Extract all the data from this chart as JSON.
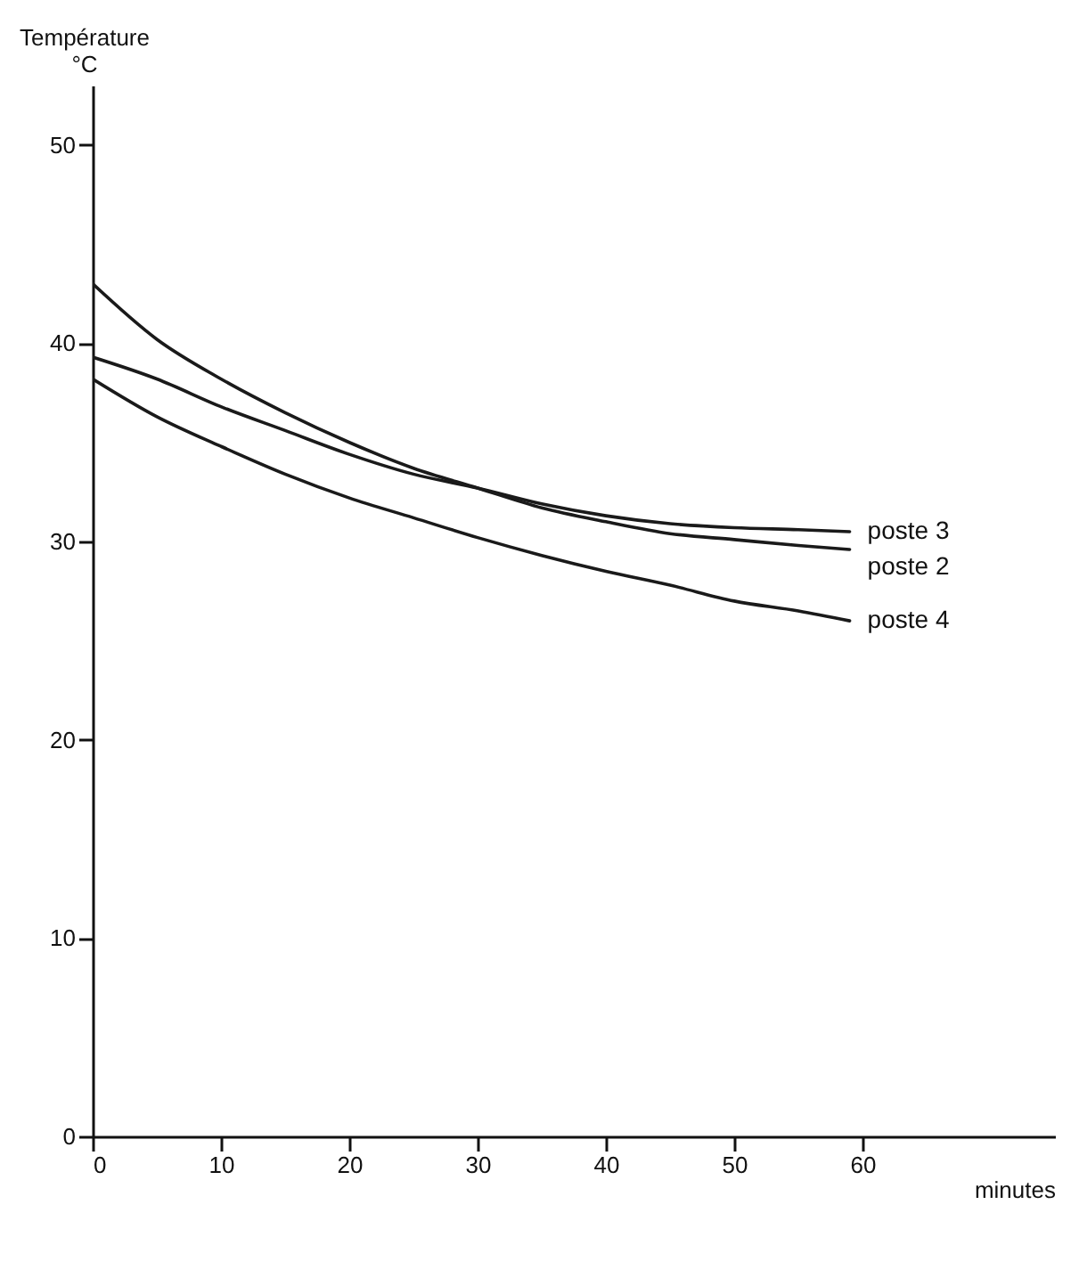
{
  "chart_data": {
    "type": "line",
    "xlabel": "minutes",
    "ylabel": "Température\n°C",
    "x": [
      0,
      5,
      10,
      15,
      20,
      25,
      30,
      35,
      40,
      45,
      50,
      55,
      59
    ],
    "series": [
      {
        "name": "poste 3",
        "color": "#1a1a1a",
        "values": [
          39.3,
          38.2,
          36.8,
          35.6,
          34.4,
          33.4,
          32.7,
          31.9,
          31.3,
          30.9,
          30.7,
          30.6,
          30.5
        ]
      },
      {
        "name": "poste 2",
        "color": "#1a1a1a",
        "values": [
          43.0,
          40.2,
          38.2,
          36.5,
          35.0,
          33.7,
          32.7,
          31.7,
          31.0,
          30.4,
          30.1,
          29.8,
          29.6
        ]
      },
      {
        "name": "poste 4",
        "color": "#1a1a1a",
        "values": [
          38.2,
          36.3,
          34.8,
          33.4,
          32.2,
          31.2,
          30.2,
          29.3,
          28.5,
          27.8,
          27.0,
          26.5,
          26.0
        ]
      }
    ],
    "xlim": [
      0,
      75
    ],
    "ylim": [
      0,
      53
    ],
    "xticks": [
      0,
      10,
      20,
      30,
      40,
      50,
      60
    ],
    "yticks": [
      0,
      10,
      20,
      30,
      40,
      50
    ],
    "grid": false,
    "legend": false,
    "marker": "none",
    "line_style": "solid"
  }
}
